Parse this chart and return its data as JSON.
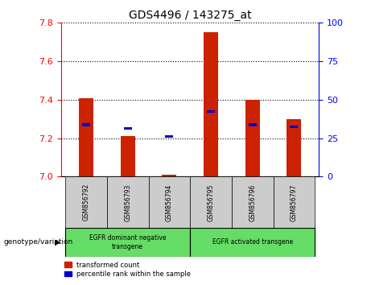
{
  "title": "GDS4496 / 143275_at",
  "samples": [
    "GSM856792",
    "GSM856793",
    "GSM856794",
    "GSM856795",
    "GSM856796",
    "GSM856797"
  ],
  "bar_values": [
    7.41,
    7.21,
    7.01,
    7.75,
    7.4,
    7.3
  ],
  "bar_base": 7.0,
  "percentile_values": [
    7.27,
    7.25,
    7.21,
    7.34,
    7.27,
    7.26
  ],
  "ylim_left": [
    7.0,
    7.8
  ],
  "ylim_right": [
    0,
    100
  ],
  "yticks_left": [
    7.0,
    7.2,
    7.4,
    7.6,
    7.8
  ],
  "yticks_right": [
    0,
    25,
    50,
    75,
    100
  ],
  "bar_color": "#cc2200",
  "percentile_color": "#0000cc",
  "group1_label": "EGFR dominant negative\ntransgene",
  "group2_label": "EGFR activated transgene",
  "group1_samples": [
    0,
    1,
    2
  ],
  "group2_samples": [
    3,
    4,
    5
  ],
  "genotype_label": "genotype/variation",
  "legend_bar": "transformed count",
  "legend_pct": "percentile rank within the sample",
  "background_color": "#ffffff",
  "plot_bg": "#ffffff",
  "group_bg": "#66dd66",
  "sample_bg": "#cccccc"
}
